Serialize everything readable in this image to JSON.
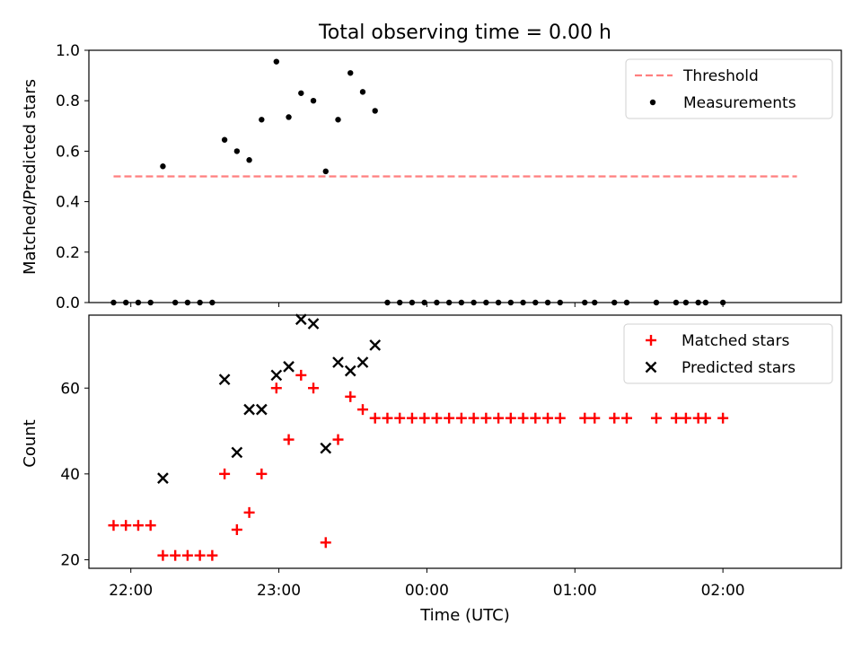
{
  "chart_data": {
    "type": "scatter",
    "title": "Total observing time = 0.00 h",
    "xlabel": "Time (UTC)",
    "x_ticks": [
      {
        "t": "22:00",
        "label": "22:00"
      },
      {
        "t": "23:00",
        "label": "23:00"
      },
      {
        "t": "24:00",
        "label": "00:00"
      },
      {
        "t": "25:00",
        "label": "01:00"
      },
      {
        "t": "26:00",
        "label": "02:00"
      }
    ],
    "xlim": [
      "21:43",
      "26:48"
    ],
    "panels": [
      {
        "ylabel": "Matched/Predicted stars",
        "ylim": [
          0,
          1.0
        ],
        "y_ticks": [
          "0.0",
          "0.2",
          "0.4",
          "0.6",
          "0.8",
          "1.0"
        ],
        "legend_position": "top-right",
        "threshold": {
          "name": "Threshold",
          "value": 0.5,
          "x_range": [
            "21:53",
            "26:30"
          ],
          "color": "#ff7f7f"
        },
        "series": [
          {
            "name": "Measurements",
            "marker": "dot",
            "color": "#000000",
            "points": [
              [
                "21:53",
                0
              ],
              [
                "21:58",
                0
              ],
              [
                "22:03",
                0
              ],
              [
                "22:08",
                0
              ],
              [
                "22:13",
                0.54
              ],
              [
                "22:18",
                0
              ],
              [
                "22:23",
                0
              ],
              [
                "22:28",
                0
              ],
              [
                "22:33",
                0
              ],
              [
                "22:38",
                0.645
              ],
              [
                "22:43",
                0.6
              ],
              [
                "22:48",
                0.565
              ],
              [
                "22:53",
                0.725
              ],
              [
                "22:59",
                0.955
              ],
              [
                "23:04",
                0.735
              ],
              [
                "23:09",
                0.83
              ],
              [
                "23:14",
                0.8
              ],
              [
                "23:19",
                0.52
              ],
              [
                "23:24",
                0.725
              ],
              [
                "23:29",
                0.91
              ],
              [
                "23:34",
                0.835
              ],
              [
                "23:39",
                0.76
              ],
              [
                "23:44",
                0
              ],
              [
                "23:49",
                0
              ],
              [
                "23:54",
                0
              ],
              [
                "23:59",
                0
              ],
              [
                "24:04",
                0
              ],
              [
                "24:09",
                0
              ],
              [
                "24:14",
                0
              ],
              [
                "24:19",
                0
              ],
              [
                "24:24",
                0
              ],
              [
                "24:29",
                0
              ],
              [
                "24:34",
                0
              ],
              [
                "24:39",
                0
              ],
              [
                "24:44",
                0
              ],
              [
                "24:49",
                0
              ],
              [
                "24:54",
                0
              ],
              [
                "25:04",
                0
              ],
              [
                "25:08",
                0
              ],
              [
                "25:16",
                0
              ],
              [
                "25:21",
                0
              ],
              [
                "25:33",
                0
              ],
              [
                "25:41",
                0
              ],
              [
                "25:45",
                0
              ],
              [
                "25:50",
                0
              ],
              [
                "25:53",
                0
              ],
              [
                "26:00",
                0
              ]
            ]
          }
        ]
      },
      {
        "ylabel": "Count",
        "ylim": [
          18,
          77
        ],
        "y_ticks": [
          "20",
          "40",
          "60"
        ],
        "legend_position": "top-right",
        "series": [
          {
            "name": "Matched stars",
            "marker": "plus",
            "color": "#ff0000",
            "points": [
              [
                "21:53",
                28
              ],
              [
                "21:58",
                28
              ],
              [
                "22:03",
                28
              ],
              [
                "22:08",
                28
              ],
              [
                "22:13",
                21
              ],
              [
                "22:18",
                21
              ],
              [
                "22:23",
                21
              ],
              [
                "22:28",
                21
              ],
              [
                "22:33",
                21
              ],
              [
                "22:38",
                40
              ],
              [
                "22:43",
                27
              ],
              [
                "22:48",
                31
              ],
              [
                "22:53",
                40
              ],
              [
                "22:59",
                60
              ],
              [
                "23:04",
                48
              ],
              [
                "23:09",
                63
              ],
              [
                "23:14",
                60
              ],
              [
                "23:19",
                24
              ],
              [
                "23:24",
                48
              ],
              [
                "23:29",
                58
              ],
              [
                "23:34",
                55
              ],
              [
                "23:39",
                53
              ],
              [
                "23:44",
                53
              ],
              [
                "23:49",
                53
              ],
              [
                "23:54",
                53
              ],
              [
                "23:59",
                53
              ],
              [
                "24:04",
                53
              ],
              [
                "24:09",
                53
              ],
              [
                "24:14",
                53
              ],
              [
                "24:19",
                53
              ],
              [
                "24:24",
                53
              ],
              [
                "24:29",
                53
              ],
              [
                "24:34",
                53
              ],
              [
                "24:39",
                53
              ],
              [
                "24:44",
                53
              ],
              [
                "24:49",
                53
              ],
              [
                "24:54",
                53
              ],
              [
                "25:04",
                53
              ],
              [
                "25:08",
                53
              ],
              [
                "25:16",
                53
              ],
              [
                "25:21",
                53
              ],
              [
                "25:33",
                53
              ],
              [
                "25:41",
                53
              ],
              [
                "25:45",
                53
              ],
              [
                "25:50",
                53
              ],
              [
                "25:53",
                53
              ],
              [
                "26:00",
                53
              ]
            ]
          },
          {
            "name": "Predicted stars",
            "marker": "cross",
            "color": "#000000",
            "points": [
              [
                "22:13",
                39
              ],
              [
                "22:38",
                62
              ],
              [
                "22:43",
                45
              ],
              [
                "22:48",
                55
              ],
              [
                "22:53",
                55
              ],
              [
                "22:59",
                63
              ],
              [
                "23:04",
                65
              ],
              [
                "23:09",
                76
              ],
              [
                "23:14",
                75
              ],
              [
                "23:19",
                46
              ],
              [
                "23:24",
                66
              ],
              [
                "23:29",
                64
              ],
              [
                "23:34",
                66
              ],
              [
                "23:39",
                70
              ]
            ]
          }
        ]
      }
    ]
  }
}
